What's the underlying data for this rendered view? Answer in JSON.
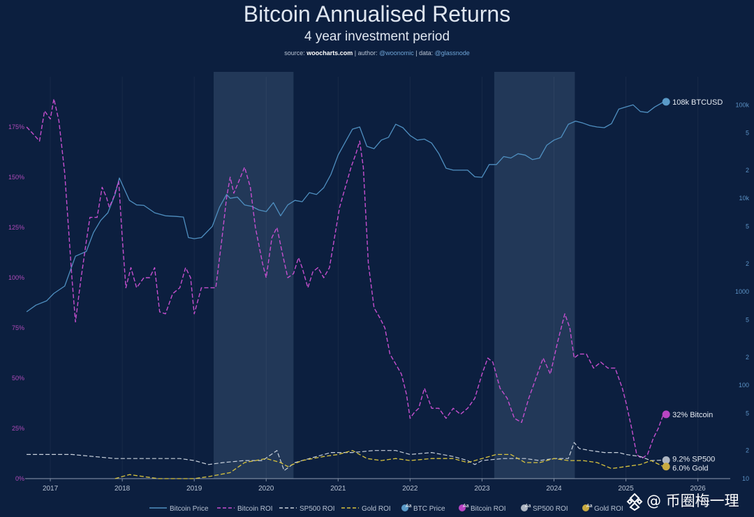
{
  "header": {
    "title": "Bitcoin Annualised Returns",
    "subtitle": "4 year investment period",
    "source_prefix": "source: ",
    "source_site": "woocharts.com",
    "author_prefix": " | author: ",
    "author": "@woonomic",
    "data_prefix": " | data: ",
    "data_src": "@glassnode"
  },
  "watermark": {
    "text": "@ 币圈梅一理"
  },
  "colors": {
    "background": "#0c1f3f",
    "shade": "#223858",
    "btc_price": "#4f8fc0",
    "btc_roi": "#c64fcf",
    "sp500_roi": "#c9d1dc",
    "gold_roi": "#d8c33e",
    "left_axis": "#b04ab9",
    "right_axis": "#5b91c4"
  },
  "chart_data": {
    "type": "line",
    "title": "Bitcoin Annualised Returns",
    "subtitle": "4 year investment period",
    "x_ticks": [
      "2017",
      "2018",
      "2019",
      "2020",
      "2021",
      "2022",
      "2023",
      "2024",
      "2025",
      "2026"
    ],
    "xlim": [
      2016.65,
      2026.45
    ],
    "left_axis": {
      "ylim": [
        0,
        200
      ],
      "ticks": [
        "0%",
        "25%",
        "50%",
        "75%",
        "100%",
        "125%",
        "150%",
        "175%"
      ],
      "tick_values": [
        0,
        25,
        50,
        75,
        100,
        125,
        150,
        175
      ]
    },
    "right_axis": {
      "scale": "log",
      "ylim": [
        10,
        200000
      ],
      "ticks": [
        "10",
        "2",
        "5",
        "100",
        "2",
        "5",
        "1000",
        "2",
        "5",
        "10k",
        "2",
        "5",
        "100k"
      ],
      "tick_values": [
        10,
        20,
        50,
        100,
        200,
        500,
        1000,
        2000,
        5000,
        10000,
        20000,
        50000,
        100000
      ]
    },
    "shaded_periods": [
      [
        2019.27,
        2020.38
      ],
      [
        2023.17,
        2024.29
      ]
    ],
    "legend": {
      "position": "bottom",
      "items": [
        "Bitcoin Price",
        "Bitcoin ROI",
        "SP500 ROI",
        "Gold ROI",
        "BTC Price",
        "Bitcoin ROI",
        "SP500 ROI",
        "Gold ROI"
      ]
    },
    "end_labels": [
      {
        "text": "108k BTCUSD",
        "series": "btc_price"
      },
      {
        "text": "32% Bitcoin",
        "series": "btc_roi"
      },
      {
        "text": "9.2% SP500",
        "series": "sp500_roi"
      },
      {
        "text": "6.0% Gold",
        "series": "gold_roi"
      }
    ],
    "series": [
      {
        "name": "Bitcoin Price",
        "axis": "right",
        "x": [
          2016.67,
          2016.8,
          2016.95,
          2017.05,
          2017.2,
          2017.35,
          2017.5,
          2017.6,
          2017.7,
          2017.8,
          2017.9,
          2017.96,
          2018.02,
          2018.1,
          2018.2,
          2018.3,
          2018.45,
          2018.6,
          2018.75,
          2018.85,
          2018.92,
          2019.0,
          2019.1,
          2019.25,
          2019.35,
          2019.45,
          2019.5,
          2019.6,
          2019.7,
          2019.8,
          2019.9,
          2020.0,
          2020.1,
          2020.2,
          2020.3,
          2020.4,
          2020.5,
          2020.6,
          2020.7,
          2020.8,
          2020.9,
          2021.0,
          2021.1,
          2021.2,
          2021.3,
          2021.4,
          2021.5,
          2021.6,
          2021.7,
          2021.8,
          2021.9,
          2022.0,
          2022.1,
          2022.2,
          2022.3,
          2022.4,
          2022.5,
          2022.6,
          2022.7,
          2022.8,
          2022.9,
          2023.0,
          2023.1,
          2023.2,
          2023.3,
          2023.4,
          2023.5,
          2023.6,
          2023.7,
          2023.8,
          2023.9,
          2024.0,
          2024.1,
          2024.2,
          2024.3,
          2024.4,
          2024.5,
          2024.6,
          2024.7,
          2024.8,
          2024.9,
          2025.0,
          2025.1,
          2025.2,
          2025.3,
          2025.4,
          2025.5,
          2025.52
        ],
        "values": [
          610,
          720,
          800,
          960,
          1150,
          2400,
          2700,
          4300,
          5800,
          7000,
          11000,
          16500,
          13000,
          9500,
          8500,
          8400,
          7000,
          6500,
          6400,
          6300,
          3800,
          3700,
          3800,
          5000,
          8000,
          11000,
          10000,
          10300,
          8500,
          8200,
          7500,
          7200,
          9000,
          6500,
          8500,
          9500,
          9200,
          11500,
          11000,
          13000,
          18000,
          29000,
          40000,
          55000,
          58000,
          36000,
          34000,
          42000,
          45000,
          62000,
          57000,
          47000,
          42000,
          43000,
          39000,
          30000,
          21000,
          20000,
          20000,
          20000,
          17000,
          16800,
          23000,
          23000,
          28000,
          27000,
          30000,
          29000,
          26000,
          27000,
          37000,
          42000,
          45000,
          62000,
          67000,
          64000,
          60000,
          58000,
          57000,
          63000,
          90000,
          95000,
          100000,
          85000,
          83000,
          95000,
          105000,
          108000
        ]
      },
      {
        "name": "Bitcoin ROI",
        "axis": "left",
        "x": [
          2016.67,
          2016.75,
          2016.85,
          2016.92,
          2017.0,
          2017.05,
          2017.12,
          2017.2,
          2017.3,
          2017.35,
          2017.42,
          2017.5,
          2017.55,
          2017.65,
          2017.72,
          2017.78,
          2017.82,
          2017.88,
          2017.95,
          2018.0,
          2018.05,
          2018.12,
          2018.2,
          2018.3,
          2018.38,
          2018.45,
          2018.52,
          2018.6,
          2018.7,
          2018.8,
          2018.88,
          2018.95,
          2019.0,
          2019.1,
          2019.2,
          2019.3,
          2019.38,
          2019.45,
          2019.5,
          2019.55,
          2019.62,
          2019.7,
          2019.78,
          2019.85,
          2019.95,
          2020.0,
          2020.08,
          2020.15,
          2020.22,
          2020.3,
          2020.38,
          2020.45,
          2020.5,
          2020.58,
          2020.65,
          2020.72,
          2020.8,
          2020.88,
          2020.95,
          2021.02,
          2021.1,
          2021.18,
          2021.25,
          2021.3,
          2021.35,
          2021.42,
          2021.5,
          2021.58,
          2021.65,
          2021.72,
          2021.8,
          2021.88,
          2021.95,
          2022.0,
          2022.06,
          2022.12,
          2022.2,
          2022.3,
          2022.4,
          2022.5,
          2022.6,
          2022.7,
          2022.8,
          2022.9,
          2023.0,
          2023.08,
          2023.15,
          2023.25,
          2023.35,
          2023.45,
          2023.55,
          2023.65,
          2023.75,
          2023.85,
          2023.95,
          2024.05,
          2024.15,
          2024.22,
          2024.28,
          2024.35,
          2024.45,
          2024.55,
          2024.65,
          2024.75,
          2024.85,
          2024.95,
          2025.0,
          2025.08,
          2025.15,
          2025.22,
          2025.3,
          2025.38,
          2025.45,
          2025.52
        ],
        "values": [
          175,
          172,
          168,
          183,
          179,
          189,
          178,
          152,
          100,
          78,
          98,
          118,
          130,
          130,
          145,
          140,
          135,
          140,
          148,
          120,
          95,
          105,
          95,
          100,
          100,
          105,
          83,
          82,
          92,
          95,
          105,
          100,
          82,
          95,
          95,
          95,
          118,
          140,
          150,
          142,
          148,
          155,
          145,
          125,
          107,
          100,
          120,
          125,
          113,
          100,
          102,
          110,
          105,
          95,
          103,
          105,
          100,
          105,
          120,
          135,
          145,
          155,
          162,
          168,
          155,
          107,
          85,
          80,
          75,
          62,
          57,
          52,
          42,
          30,
          33,
          35,
          45,
          35,
          35,
          30,
          35,
          32,
          35,
          40,
          52,
          60,
          58,
          45,
          40,
          30,
          28,
          40,
          50,
          60,
          52,
          68,
          82,
          75,
          60,
          62,
          62,
          55,
          58,
          55,
          55,
          45,
          38,
          25,
          12,
          10,
          12,
          20,
          25,
          32
        ]
      },
      {
        "name": "SP500 ROI",
        "axis": "left",
        "x": [
          2016.67,
          2017.0,
          2017.3,
          2017.6,
          2017.9,
          2018.2,
          2018.5,
          2018.8,
          2019.0,
          2019.2,
          2019.4,
          2019.7,
          2019.95,
          2020.15,
          2020.25,
          2020.4,
          2020.6,
          2020.9,
          2021.2,
          2021.5,
          2021.8,
          2022.0,
          2022.3,
          2022.6,
          2022.8,
          2022.9,
          2023.0,
          2023.3,
          2023.6,
          2023.8,
          2024.0,
          2024.2,
          2024.28,
          2024.35,
          2024.5,
          2024.7,
          2024.9,
          2025.0,
          2025.2,
          2025.35,
          2025.52
        ],
        "values": [
          12,
          12,
          12,
          11,
          10,
          10,
          10,
          10,
          9,
          7,
          8,
          9,
          9,
          14,
          4,
          8,
          10,
          13,
          13,
          14,
          14,
          12,
          13,
          11,
          9,
          7,
          9,
          10,
          10,
          9,
          10,
          10,
          18,
          15,
          14,
          13,
          13,
          12,
          11,
          9,
          9.2
        ]
      },
      {
        "name": "Gold ROI",
        "axis": "left",
        "x": [
          2017.9,
          2018.1,
          2018.3,
          2018.5,
          2018.7,
          2019.0,
          2019.2,
          2019.5,
          2019.7,
          2020.0,
          2020.2,
          2020.3,
          2020.5,
          2020.8,
          2021.0,
          2021.2,
          2021.4,
          2021.6,
          2021.8,
          2022.0,
          2022.3,
          2022.6,
          2022.8,
          2023.0,
          2023.2,
          2023.4,
          2023.6,
          2023.8,
          2024.0,
          2024.2,
          2024.4,
          2024.6,
          2024.8,
          2025.0,
          2025.2,
          2025.35,
          2025.52
        ],
        "values": [
          0,
          2,
          1,
          0,
          0,
          0,
          1,
          3,
          8,
          10,
          8,
          6,
          9,
          11,
          12,
          14,
          10,
          9,
          10,
          9,
          10,
          10,
          8,
          10,
          12,
          12,
          8,
          8,
          10,
          9,
          9,
          8,
          5,
          6,
          7,
          9,
          6.0
        ]
      }
    ]
  }
}
